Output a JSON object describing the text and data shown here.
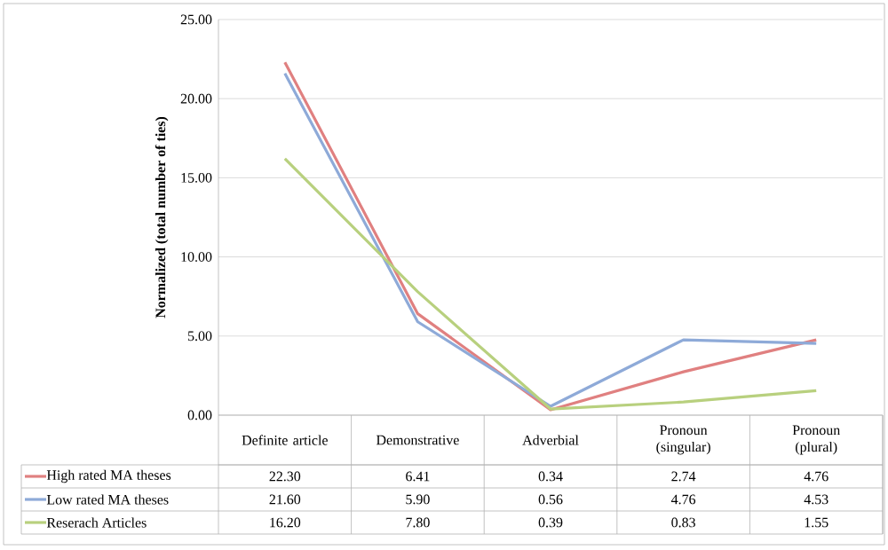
{
  "chart_data": {
    "type": "line",
    "ylabel": "Normalized (total number of ties)",
    "categories": [
      "Definite article",
      "Demonstrative",
      "Adverbial",
      "Pronoun (singular)",
      "Pronoun (plural)"
    ],
    "series": [
      {
        "name": "High rated MA theses",
        "color": "#e08080",
        "values": [
          22.3,
          6.41,
          0.34,
          2.74,
          4.76
        ],
        "value_labels": [
          "22.30",
          "6.41",
          "0.34",
          "2.74",
          "4.76"
        ]
      },
      {
        "name": "Low rated MA theses",
        "color": "#8eaad8",
        "values": [
          21.6,
          5.9,
          0.56,
          4.76,
          4.53
        ],
        "value_labels": [
          "21.60",
          "5.90",
          "0.56",
          "4.76",
          "4.53"
        ]
      },
      {
        "name": "Reserach Articles",
        "color": "#b8d07e",
        "values": [
          16.2,
          7.8,
          0.39,
          0.83,
          1.55
        ],
        "value_labels": [
          "16.20",
          "7.80",
          "0.39",
          "0.83",
          "1.55"
        ]
      }
    ],
    "ylim": [
      0,
      25
    ],
    "yticks": [
      {
        "value": 0,
        "label": "0.00"
      },
      {
        "value": 5,
        "label": "5.00"
      },
      {
        "value": 10,
        "label": "10.00"
      },
      {
        "value": 15,
        "label": "15.00"
      },
      {
        "value": 20,
        "label": "20.00"
      },
      {
        "value": 25,
        "label": "25.00"
      }
    ],
    "grid": "y",
    "legend": "bottom",
    "marker": "none",
    "line_style": "solid"
  }
}
